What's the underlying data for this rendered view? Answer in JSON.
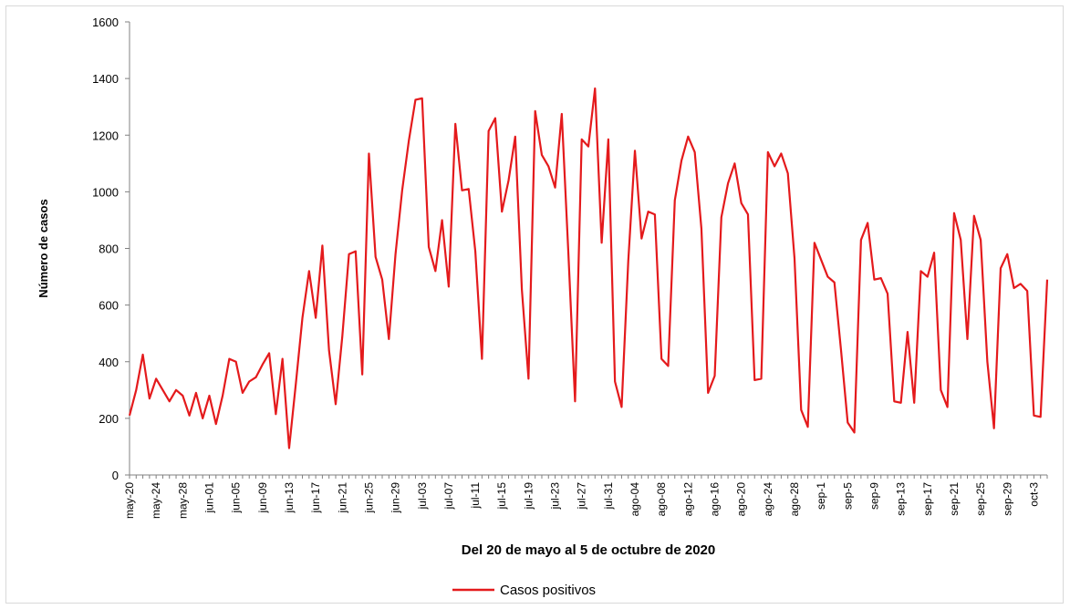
{
  "chart_data": {
    "type": "line",
    "title": "",
    "xlabel": "Del 20 de mayo al 5 de octubre de 2020",
    "ylabel": "Número de casos",
    "ylim": [
      0,
      1600
    ],
    "yticks": [
      0,
      200,
      400,
      600,
      800,
      1000,
      1200,
      1400,
      1600
    ],
    "grid": false,
    "legend_position": "bottom",
    "xtick_labels": [
      "may-20",
      "may-24",
      "may-28",
      "jun-01",
      "jun-05",
      "jun-09",
      "jun-13",
      "jun-17",
      "jun-21",
      "jun-25",
      "jun-29",
      "jul-03",
      "jul-07",
      "jul-11",
      "jul-15",
      "jul-19",
      "jul-23",
      "jul-27",
      "jul-31",
      "ago-04",
      "ago-08",
      "ago-12",
      "ago-16",
      "ago-20",
      "ago-24",
      "ago-28",
      "sep-1",
      "sep-5",
      "sep-9",
      "sep-13",
      "sep-17",
      "sep-21",
      "sep-25",
      "sep-29",
      "oct-3"
    ],
    "tick_every": 4,
    "x_start": "2020-05-20",
    "x_end": "2020-10-05",
    "color": "#e41a1c",
    "series": [
      {
        "name": "Casos positivos",
        "values": [
          210,
          300,
          425,
          270,
          340,
          300,
          260,
          300,
          280,
          210,
          290,
          200,
          280,
          180,
          280,
          410,
          400,
          290,
          330,
          345,
          390,
          430,
          215,
          410,
          95,
          320,
          555,
          720,
          555,
          810,
          440,
          250,
          490,
          780,
          790,
          355,
          1135,
          770,
          690,
          480,
          780,
          1005,
          1180,
          1325,
          1330,
          805,
          720,
          900,
          665,
          1240,
          1005,
          1010,
          790,
          410,
          1215,
          1260,
          930,
          1040,
          1195,
          655,
          340,
          1285,
          1130,
          1090,
          1015,
          1275,
          780,
          260,
          1185,
          1160,
          1365,
          820,
          1185,
          330,
          240,
          755,
          1145,
          835,
          930,
          920,
          410,
          385,
          970,
          1110,
          1195,
          1140,
          870,
          290,
          350,
          910,
          1030,
          1100,
          960,
          920,
          335,
          340,
          1140,
          1090,
          1135,
          1065,
          765,
          230,
          170,
          820,
          760,
          700,
          680,
          440,
          185,
          150,
          830,
          890,
          690,
          695,
          640,
          260,
          255,
          505,
          255,
          720,
          700,
          785,
          300,
          240,
          925,
          830,
          480,
          915,
          830,
          400,
          165,
          730,
          780,
          660,
          675,
          650,
          210,
          205,
          690
        ]
      }
    ]
  }
}
